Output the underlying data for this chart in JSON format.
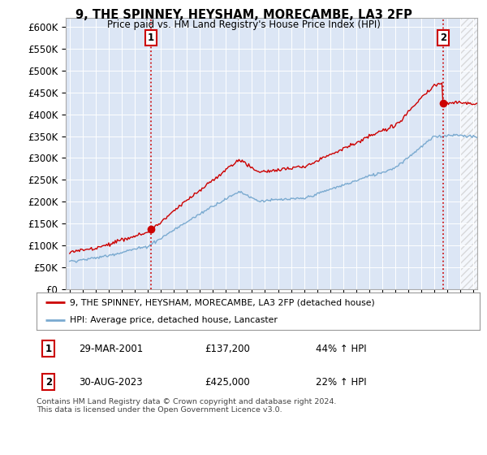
{
  "title": "9, THE SPINNEY, HEYSHAM, MORECAMBE, LA3 2FP",
  "subtitle": "Price paid vs. HM Land Registry's House Price Index (HPI)",
  "ylim": [
    0,
    620000
  ],
  "xlim_start": 1994.7,
  "xlim_end": 2026.3,
  "hpi_color": "#7aaad0",
  "price_color": "#cc0000",
  "vline_color": "#cc0000",
  "sale1_year": 2001.25,
  "sale1_price": 137200,
  "sale2_year": 2023.67,
  "sale2_price": 425000,
  "legend_entries": [
    "9, THE SPINNEY, HEYSHAM, MORECAMBE, LA3 2FP (detached house)",
    "HPI: Average price, detached house, Lancaster"
  ],
  "table_data": [
    [
      "1",
      "29-MAR-2001",
      "£137,200",
      "44% ↑ HPI"
    ],
    [
      "2",
      "30-AUG-2023",
      "£425,000",
      "22% ↑ HPI"
    ]
  ],
  "footer": "Contains HM Land Registry data © Crown copyright and database right 2024.\nThis data is licensed under the Open Government Licence v3.0.",
  "background_color": "#ffffff",
  "plot_bg_color": "#dce6f5"
}
